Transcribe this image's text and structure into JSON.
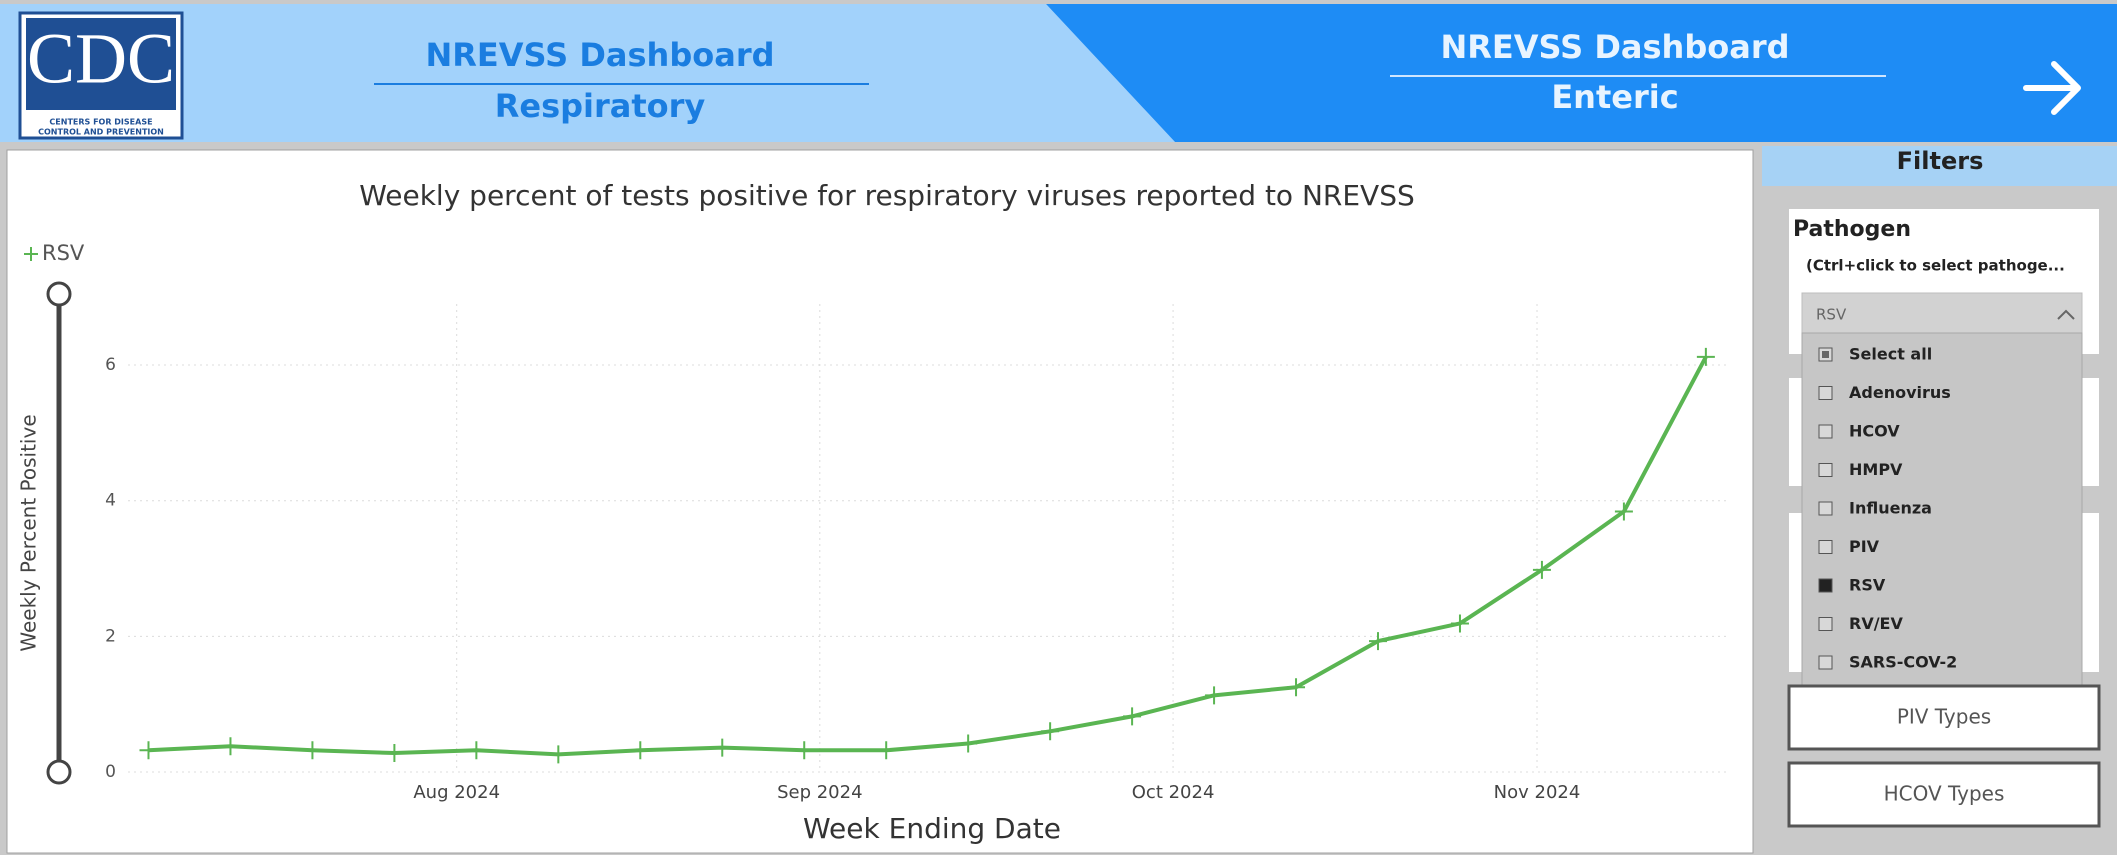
{
  "header": {
    "logo": {
      "abbr": "CDC",
      "line1": "CENTERS FOR DISEASE",
      "line2": "CONTROL AND PREVENTION"
    },
    "tabs": [
      {
        "title": "NREVSS Dashboard",
        "subtitle": "Respiratory"
      },
      {
        "title": "NREVSS Dashboard",
        "subtitle": "Enteric"
      }
    ]
  },
  "chart_data": {
    "type": "line",
    "title": "Weekly percent of tests positive for respiratory viruses reported to NREVSS",
    "x_label": "Week Ending Date",
    "y_label": "Weekly Percent Positive",
    "categories": [
      null,
      null,
      null,
      null,
      null,
      null,
      null,
      null,
      null,
      null,
      null,
      null,
      null,
      null,
      null,
      null,
      null,
      null,
      null,
      null
    ],
    "series": [
      {
        "name": "RSV",
        "color": "#5ab552",
        "values": [
          0.32,
          0.38,
          0.32,
          0.28,
          0.32,
          0.26,
          0.32,
          0.36,
          0.32,
          0.32,
          0.42,
          0.6,
          0.82,
          1.13,
          1.25,
          1.93,
          2.19,
          2.98,
          3.84,
          6.12
        ]
      }
    ],
    "xlim": [
      -0.25,
      19.27
    ],
    "xticks": [
      {
        "value": 3.76,
        "label": "Aug 2024"
      },
      {
        "value": 8.19,
        "label": "Sep 2024"
      },
      {
        "value": 12.5,
        "label": "Oct 2024"
      },
      {
        "value": 16.94,
        "label": "Nov 2024"
      }
    ],
    "ylim": [
      0,
      6.9
    ],
    "yticks": [
      0,
      2,
      4,
      6
    ],
    "grid": true,
    "legend": "top-left"
  },
  "filters": {
    "title": "Filters",
    "pathogen": {
      "label": "Pathogen",
      "hint": "(Ctrl+click to select pathoge...",
      "selected": "RSV",
      "options": [
        "Select all",
        "Adenovirus",
        "HCOV",
        "HMPV",
        "Influenza",
        "PIV",
        "RSV",
        "RV/EV",
        "SARS-COV-2"
      ],
      "states": [
        "partial",
        "empty",
        "empty",
        "empty",
        "empty",
        "empty",
        "checked",
        "empty",
        "empty"
      ]
    },
    "buttons": [
      "PIV Types",
      "HCOV Types"
    ]
  }
}
